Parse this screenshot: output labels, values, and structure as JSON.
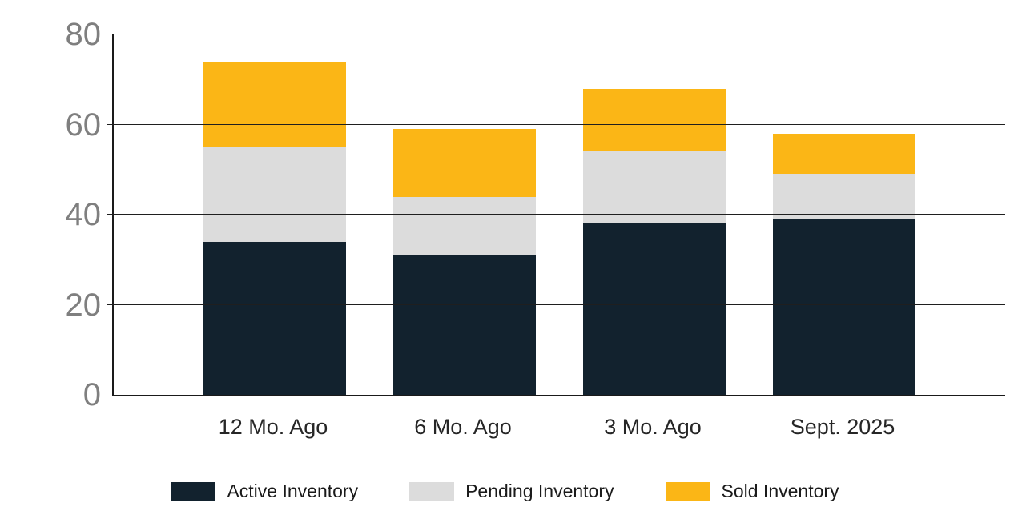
{
  "chart_data": {
    "type": "bar",
    "stacked": true,
    "title": "",
    "xlabel": "",
    "ylabel": "",
    "categories": [
      "12 Mo. Ago",
      "6 Mo. Ago",
      "3 Mo. Ago",
      "Sept. 2025"
    ],
    "series": [
      {
        "name": "Active Inventory",
        "color": "#12222e",
        "values": [
          34,
          31,
          38,
          39
        ]
      },
      {
        "name": "Pending Inventory",
        "color": "#dcdcdc",
        "values": [
          21,
          13,
          16,
          10
        ]
      },
      {
        "name": "Sold Inventory",
        "color": "#fbb616",
        "values": [
          19,
          15,
          14,
          9
        ]
      }
    ],
    "totals": [
      74,
      59,
      68,
      58
    ],
    "ylim": [
      0,
      80
    ],
    "yticks": [
      0,
      20,
      40,
      60,
      80
    ],
    "grid": true,
    "legend_position": "bottom"
  },
  "colors": {
    "background": "#ffffff",
    "axis": "#1a1a1a",
    "gridline": "#1f1f1f",
    "y_tick_label": "#7f7f7f",
    "x_tick_label": "#262626",
    "legend_text": "#1a1a1a"
  }
}
